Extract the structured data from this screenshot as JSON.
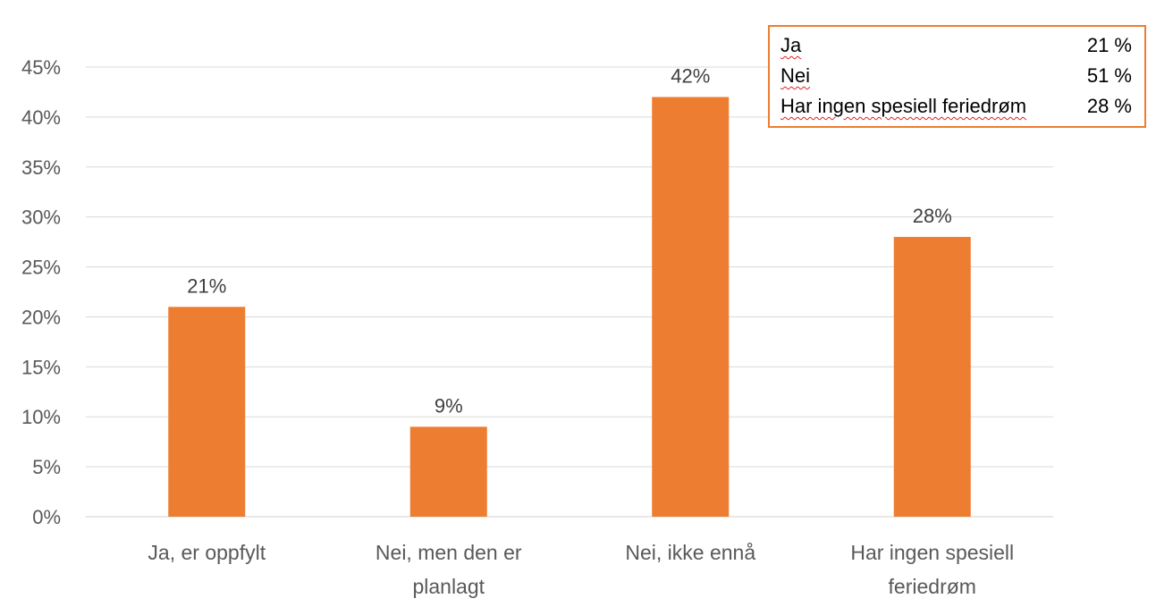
{
  "chart_data": {
    "type": "bar",
    "categories": [
      [
        "Ja, er oppfylt"
      ],
      [
        "Nei, men den er",
        "planlagt"
      ],
      [
        "Nei, ikke ennå"
      ],
      [
        "Har ingen spesiell",
        "feriedrøm"
      ]
    ],
    "values": [
      21,
      9,
      42,
      28
    ],
    "data_labels": [
      "21%",
      "9%",
      "42%",
      "28%"
    ],
    "y_ticks": [
      "0%",
      "5%",
      "10%",
      "15%",
      "20%",
      "25%",
      "30%",
      "35%",
      "40%",
      "45%"
    ],
    "ylim": [
      0,
      45
    ],
    "grid": true,
    "bar_color": "#ed7d31",
    "title": "",
    "xlabel": "",
    "ylabel": ""
  },
  "summary_box": {
    "border_color": "#ed7d31",
    "rows": [
      {
        "label": "Ja",
        "value": "21 %"
      },
      {
        "label": "Nei",
        "value": "51 %"
      },
      {
        "label": "Har ingen spesiell feriedrøm",
        "value": "28 %"
      }
    ]
  }
}
